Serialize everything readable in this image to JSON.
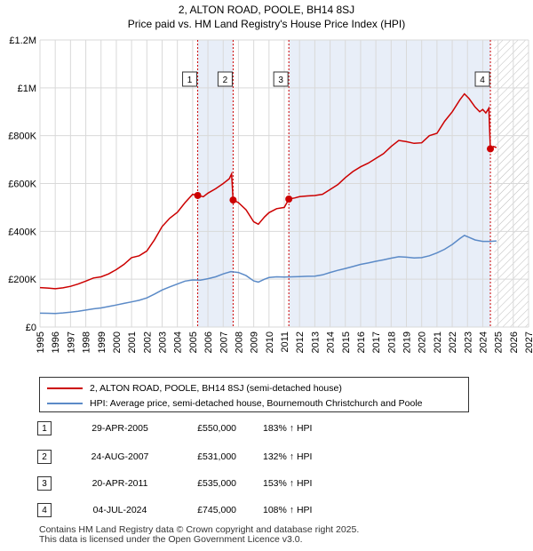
{
  "chart_data": {
    "type": "line",
    "title": "2, ALTON ROAD, POOLE, BH14 8SJ",
    "subtitle": "Price paid vs. HM Land Registry's House Price Index (HPI)",
    "xlim": [
      1995,
      2027
    ],
    "ylim": [
      0,
      1200000
    ],
    "x_ticks": [
      "1995",
      "1996",
      "1997",
      "1998",
      "1999",
      "2000",
      "2001",
      "2002",
      "2003",
      "2004",
      "2005",
      "2006",
      "2007",
      "2008",
      "2009",
      "2010",
      "2011",
      "2012",
      "2013",
      "2014",
      "2015",
      "2016",
      "2017",
      "2018",
      "2019",
      "2020",
      "2021",
      "2022",
      "2023",
      "2024",
      "2025",
      "2026",
      "2027"
    ],
    "y_ticks": [
      {
        "value": 0,
        "label": "£0"
      },
      {
        "value": 200000,
        "label": "£200K"
      },
      {
        "value": 400000,
        "label": "£400K"
      },
      {
        "value": 600000,
        "label": "£600K"
      },
      {
        "value": 800000,
        "label": "£800K"
      },
      {
        "value": 1000000,
        "label": "£1M"
      },
      {
        "value": 1200000,
        "label": "£1.2M"
      }
    ],
    "grid": true,
    "future_hatch_from": 2024.75,
    "shaded_periods": [
      [
        2005.33,
        2007.65
      ],
      [
        2011.3,
        2024.5
      ]
    ],
    "series": [
      {
        "name": "2, ALTON ROAD, POOLE, BH14 8SJ (semi-detached house)",
        "color": "#cc0000",
        "points": [
          [
            1995.0,
            165000
          ],
          [
            1995.5,
            163000
          ],
          [
            1996.0,
            160000
          ],
          [
            1996.5,
            164000
          ],
          [
            1997.0,
            170000
          ],
          [
            1997.5,
            180000
          ],
          [
            1998.0,
            192000
          ],
          [
            1998.5,
            205000
          ],
          [
            1999.0,
            210000
          ],
          [
            1999.5,
            222000
          ],
          [
            2000.0,
            240000
          ],
          [
            2000.5,
            262000
          ],
          [
            2001.0,
            290000
          ],
          [
            2001.5,
            298000
          ],
          [
            2002.0,
            318000
          ],
          [
            2002.5,
            365000
          ],
          [
            2003.0,
            420000
          ],
          [
            2003.5,
            455000
          ],
          [
            2004.0,
            480000
          ],
          [
            2004.5,
            520000
          ],
          [
            2005.0,
            555000
          ],
          [
            2005.33,
            550000
          ],
          [
            2005.7,
            545000
          ],
          [
            2006.0,
            560000
          ],
          [
            2006.5,
            578000
          ],
          [
            2007.0,
            600000
          ],
          [
            2007.4,
            620000
          ],
          [
            2007.55,
            640000
          ],
          [
            2007.65,
            531000
          ],
          [
            2008.0,
            520000
          ],
          [
            2008.5,
            490000
          ],
          [
            2009.0,
            440000
          ],
          [
            2009.3,
            430000
          ],
          [
            2009.7,
            460000
          ],
          [
            2010.0,
            478000
          ],
          [
            2010.5,
            495000
          ],
          [
            2011.0,
            500000
          ],
          [
            2011.3,
            535000
          ],
          [
            2011.7,
            540000
          ],
          [
            2012.0,
            545000
          ],
          [
            2012.5,
            548000
          ],
          [
            2013.0,
            550000
          ],
          [
            2013.5,
            555000
          ],
          [
            2014.0,
            575000
          ],
          [
            2014.5,
            595000
          ],
          [
            2015.0,
            625000
          ],
          [
            2015.5,
            650000
          ],
          [
            2016.0,
            670000
          ],
          [
            2016.5,
            685000
          ],
          [
            2017.0,
            705000
          ],
          [
            2017.5,
            725000
          ],
          [
            2018.0,
            755000
          ],
          [
            2018.5,
            780000
          ],
          [
            2019.0,
            775000
          ],
          [
            2019.5,
            768000
          ],
          [
            2020.0,
            770000
          ],
          [
            2020.5,
            800000
          ],
          [
            2021.0,
            810000
          ],
          [
            2021.5,
            860000
          ],
          [
            2022.0,
            900000
          ],
          [
            2022.5,
            950000
          ],
          [
            2022.8,
            975000
          ],
          [
            2023.1,
            955000
          ],
          [
            2023.5,
            920000
          ],
          [
            2023.8,
            900000
          ],
          [
            2024.0,
            910000
          ],
          [
            2024.2,
            895000
          ],
          [
            2024.4,
            915000
          ],
          [
            2024.5,
            745000
          ],
          [
            2024.7,
            755000
          ],
          [
            2024.9,
            750000
          ]
        ]
      },
      {
        "name": "HPI: Average price, semi-detached house, Bournemouth Christchurch and Poole",
        "color": "#5b8ac7",
        "points": [
          [
            1995.0,
            58000
          ],
          [
            1995.5,
            57500
          ],
          [
            1996.0,
            57000
          ],
          [
            1996.5,
            59000
          ],
          [
            1997.0,
            62000
          ],
          [
            1997.5,
            66000
          ],
          [
            1998.0,
            71000
          ],
          [
            1998.5,
            76000
          ],
          [
            1999.0,
            80000
          ],
          [
            1999.5,
            86000
          ],
          [
            2000.0,
            92000
          ],
          [
            2000.5,
            99000
          ],
          [
            2001.0,
            105000
          ],
          [
            2001.5,
            112000
          ],
          [
            2002.0,
            122000
          ],
          [
            2002.5,
            138000
          ],
          [
            2003.0,
            155000
          ],
          [
            2003.5,
            168000
          ],
          [
            2004.0,
            180000
          ],
          [
            2004.5,
            192000
          ],
          [
            2005.0,
            197000
          ],
          [
            2005.5,
            196000
          ],
          [
            2006.0,
            202000
          ],
          [
            2006.5,
            210000
          ],
          [
            2007.0,
            222000
          ],
          [
            2007.5,
            232000
          ],
          [
            2008.0,
            228000
          ],
          [
            2008.5,
            215000
          ],
          [
            2009.0,
            193000
          ],
          [
            2009.3,
            188000
          ],
          [
            2009.7,
            200000
          ],
          [
            2010.0,
            207000
          ],
          [
            2010.5,
            210000
          ],
          [
            2011.0,
            209000
          ],
          [
            2011.5,
            210000
          ],
          [
            2012.0,
            211000
          ],
          [
            2012.5,
            212000
          ],
          [
            2013.0,
            213000
          ],
          [
            2013.5,
            218000
          ],
          [
            2014.0,
            228000
          ],
          [
            2014.5,
            237000
          ],
          [
            2015.0,
            245000
          ],
          [
            2015.5,
            253000
          ],
          [
            2016.0,
            262000
          ],
          [
            2016.5,
            268000
          ],
          [
            2017.0,
            275000
          ],
          [
            2017.5,
            281000
          ],
          [
            2018.0,
            288000
          ],
          [
            2018.5,
            294000
          ],
          [
            2019.0,
            292000
          ],
          [
            2019.5,
            289000
          ],
          [
            2020.0,
            290000
          ],
          [
            2020.5,
            298000
          ],
          [
            2021.0,
            310000
          ],
          [
            2021.5,
            325000
          ],
          [
            2022.0,
            345000
          ],
          [
            2022.5,
            370000
          ],
          [
            2022.8,
            383000
          ],
          [
            2023.1,
            375000
          ],
          [
            2023.5,
            364000
          ],
          [
            2024.0,
            358000
          ],
          [
            2024.5,
            358000
          ],
          [
            2024.9,
            360000
          ]
        ]
      }
    ],
    "sales": [
      {
        "num": "1",
        "year": 2005.33,
        "value": 550000,
        "date": "29-APR-2005",
        "price": "£550,000",
        "hpi": "183% ↑ HPI"
      },
      {
        "num": "2",
        "year": 2007.65,
        "value": 531000,
        "date": "24-AUG-2007",
        "price": "£531,000",
        "hpi": "132% ↑ HPI"
      },
      {
        "num": "3",
        "year": 2011.3,
        "value": 535000,
        "date": "20-APR-2011",
        "price": "£535,000",
        "hpi": "153% ↑ HPI"
      },
      {
        "num": "4",
        "year": 2024.5,
        "value": 745000,
        "date": "04-JUL-2024",
        "price": "£745,000",
        "hpi": "108% ↑ HPI"
      }
    ]
  },
  "legend": {
    "red_label": "2, ALTON ROAD, POOLE, BH14 8SJ (semi-detached house)",
    "blue_label": "HPI: Average price, semi-detached house, Bournemouth Christchurch and Poole",
    "red_color": "#cc0000",
    "blue_color": "#5b8ac7"
  },
  "footer": {
    "line1": "Contains HM Land Registry data © Crown copyright and database right 2025.",
    "line2": "This data is licensed under the Open Government Licence v3.0."
  }
}
